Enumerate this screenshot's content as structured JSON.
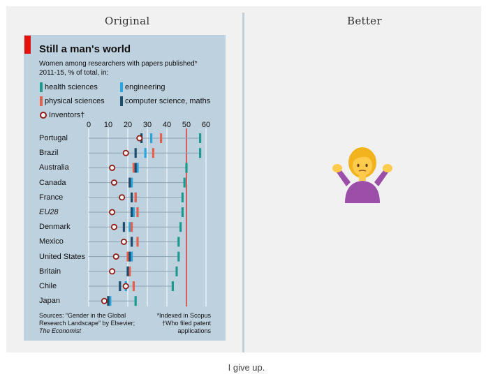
{
  "header": {
    "left_title": "Original",
    "right_title": "Better"
  },
  "chart_card": {
    "title": "Still a man's world",
    "subtitle_line1": "Women among researchers with papers published*",
    "subtitle_line2": "2011-15, % of total, in:",
    "legend": {
      "health": "health sciences",
      "engineering": "engineering",
      "physical": "physical sciences",
      "computer": "computer science, maths",
      "inventors": "Inventors†"
    },
    "source_line1": "Sources: “Gender in the Global",
    "source_line2": "Research Landscape” by Elsevier;",
    "source_line3": "The Economist",
    "footnote_line1": "*Indexed in Scopus",
    "footnote_line2": "†Who filed patent",
    "footnote_line3": "applications"
  },
  "chart_data": {
    "type": "scatter",
    "title": "Still a man's world",
    "subtitle": "Women among researchers with papers published* 2011-15, % of total, in:",
    "x_ticks": [
      "0",
      "10",
      "20",
      "30",
      "40",
      "50",
      "60"
    ],
    "xlim": [
      0,
      60
    ],
    "grid": true,
    "categories": [
      "Portugal",
      "Brazil",
      "Australia",
      "Canada",
      "France",
      "EU28",
      "Denmark",
      "Mexico",
      "United States",
      "Britain",
      "Chile",
      "Japan"
    ],
    "italic_categories": [
      "EU28"
    ],
    "series": [
      {
        "name": "health sciences",
        "color": "#1a9b8e",
        "marker": "bar",
        "values": [
          57,
          57,
          50,
          49,
          48,
          48,
          47,
          46,
          46,
          45,
          43,
          24
        ]
      },
      {
        "name": "engineering",
        "color": "#2aa5dd",
        "marker": "bar",
        "values": [
          32,
          29,
          25,
          22,
          24,
          23,
          21,
          22,
          22,
          20,
          19,
          11
        ]
      },
      {
        "name": "physical sciences",
        "color": "#e8604c",
        "marker": "bar",
        "values": [
          37,
          33,
          23,
          21,
          24,
          25,
          22,
          25,
          20,
          21,
          23,
          10
        ]
      },
      {
        "name": "computer science, maths",
        "color": "#1d4d6b",
        "marker": "bar",
        "values": [
          27,
          24,
          24,
          21,
          22,
          22,
          18,
          22,
          21,
          20,
          16,
          10
        ]
      },
      {
        "name": "Inventors†",
        "color": "#8c1c13",
        "marker": "circle",
        "values": [
          26,
          19,
          12,
          13,
          17,
          12,
          13,
          18,
          14,
          12,
          19,
          8
        ]
      }
    ],
    "reference_line": 50
  },
  "right_panel": {
    "emoji_name": "person-shrugging"
  },
  "caption": "I give up."
}
